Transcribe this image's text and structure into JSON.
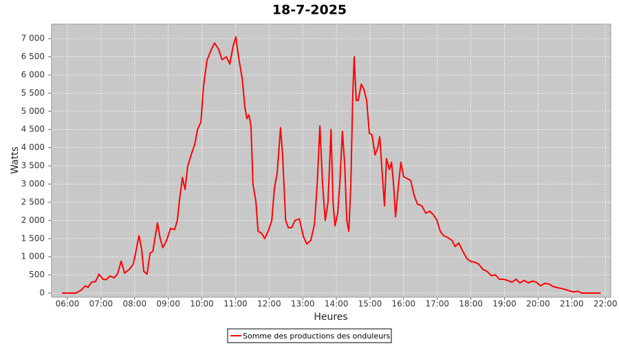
{
  "chart_data": {
    "type": "line",
    "title": "18-7-2025",
    "x_label": "Heures",
    "y_label": "Watts",
    "x": [
      5.84,
      6.25,
      6.41,
      6.53,
      6.61,
      6.72,
      6.84,
      6.94,
      7.06,
      7.15,
      7.27,
      7.39,
      7.49,
      7.6,
      7.7,
      7.84,
      7.96,
      8.05,
      8.13,
      8.21,
      8.27,
      8.37,
      8.46,
      8.54,
      8.68,
      8.76,
      8.84,
      8.95,
      9.07,
      9.19,
      9.27,
      9.34,
      9.42,
      9.5,
      9.58,
      9.68,
      9.79,
      9.87,
      9.97,
      10.05,
      10.15,
      10.28,
      10.38,
      10.5,
      10.6,
      10.73,
      10.83,
      10.93,
      11.01,
      11.09,
      11.2,
      11.28,
      11.34,
      11.4,
      11.46,
      11.52,
      11.61,
      11.67,
      11.77,
      11.87,
      11.97,
      12.08,
      12.16,
      12.24,
      12.34,
      12.4,
      12.49,
      12.57,
      12.67,
      12.77,
      12.9,
      13.02,
      13.12,
      13.24,
      13.35,
      13.43,
      13.51,
      13.59,
      13.67,
      13.75,
      13.84,
      13.9,
      13.96,
      14.04,
      14.1,
      14.18,
      14.25,
      14.31,
      14.37,
      14.43,
      14.49,
      14.53,
      14.59,
      14.65,
      14.74,
      14.82,
      14.9,
      14.98,
      15.06,
      15.15,
      15.23,
      15.29,
      15.37,
      15.43,
      15.49,
      15.58,
      15.64,
      15.7,
      15.76,
      15.84,
      15.92,
      16.0,
      16.11,
      16.21,
      16.31,
      16.41,
      16.54,
      16.66,
      16.78,
      16.89,
      16.99,
      17.09,
      17.19,
      17.31,
      17.44,
      17.53,
      17.64,
      17.76,
      17.88,
      18.0,
      18.12,
      18.23,
      18.36,
      18.48,
      18.61,
      18.73,
      18.85,
      18.97,
      19.09,
      19.22,
      19.34,
      19.46,
      19.58,
      19.71,
      19.83,
      19.95,
      20.07,
      20.2,
      20.32,
      20.45,
      20.57,
      20.69,
      20.81,
      20.94,
      21.06,
      21.18,
      21.3,
      21.59,
      21.86
    ],
    "series": [
      {
        "name": "Somme des productions des onduleurs",
        "color": "#ff0000",
        "values": [
          0,
          0,
          80,
          200,
          160,
          300,
          320,
          520,
          380,
          370,
          470,
          420,
          520,
          880,
          550,
          650,
          800,
          1200,
          1580,
          1200,
          600,
          520,
          1100,
          1150,
          1930,
          1500,
          1250,
          1450,
          1780,
          1750,
          2000,
          2600,
          3180,
          2850,
          3500,
          3800,
          4100,
          4500,
          4700,
          5700,
          6400,
          6700,
          6880,
          6700,
          6420,
          6500,
          6300,
          6800,
          7050,
          6500,
          5900,
          5100,
          4800,
          4900,
          4600,
          3000,
          2500,
          1700,
          1650,
          1500,
          1700,
          2000,
          2900,
          3300,
          4550,
          3800,
          2000,
          1800,
          1800,
          2000,
          2040,
          1550,
          1350,
          1450,
          1900,
          3000,
          4600,
          3000,
          2000,
          2500,
          4500,
          2500,
          1850,
          2200,
          3000,
          4450,
          3500,
          2000,
          1700,
          3000,
          5500,
          6500,
          5300,
          5300,
          5750,
          5600,
          5300,
          4400,
          4350,
          3800,
          4000,
          4300,
          3200,
          2400,
          3700,
          3400,
          3600,
          3000,
          2100,
          2900,
          3600,
          3200,
          3150,
          3100,
          2700,
          2450,
          2400,
          2200,
          2250,
          2150,
          2000,
          1700,
          1580,
          1530,
          1450,
          1280,
          1380,
          1150,
          950,
          870,
          850,
          800,
          650,
          600,
          480,
          500,
          380,
          380,
          350,
          300,
          380,
          280,
          350,
          280,
          330,
          300,
          200,
          270,
          250,
          180,
          150,
          130,
          100,
          60,
          30,
          50,
          0,
          0,
          0
        ]
      }
    ],
    "xlim": [
      5.53,
      22.16
    ],
    "xticks": [
      {
        "value": 6,
        "label": "06:00"
      },
      {
        "value": 7,
        "label": "07:00"
      },
      {
        "value": 8,
        "label": "08:00"
      },
      {
        "value": 9,
        "label": "09:00"
      },
      {
        "value": 10,
        "label": "10:00"
      },
      {
        "value": 11,
        "label": "11:00"
      },
      {
        "value": 12,
        "label": "12:00"
      },
      {
        "value": 13,
        "label": "13:00"
      },
      {
        "value": 14,
        "label": "14:00"
      },
      {
        "value": 15,
        "label": "15:00"
      },
      {
        "value": 16,
        "label": "16:00"
      },
      {
        "value": 17,
        "label": "17:00"
      },
      {
        "value": 18,
        "label": "18:00"
      },
      {
        "value": 19,
        "label": "19:00"
      },
      {
        "value": 20,
        "label": "20:00"
      },
      {
        "value": 21,
        "label": "21:00"
      },
      {
        "value": 22,
        "label": "22:00"
      }
    ],
    "ylim": [
      -113,
      7400
    ],
    "yticks": [
      0,
      500,
      {
        "value": 1000,
        "label": "1 000"
      },
      {
        "value": 1500,
        "label": "1 500"
      },
      {
        "value": 2000,
        "label": "2 000"
      },
      {
        "value": 2500,
        "label": "2 500"
      },
      {
        "value": 3000,
        "label": "3 000"
      },
      {
        "value": 3500,
        "label": "3 500"
      },
      {
        "value": 4000,
        "label": "4 000"
      },
      {
        "value": 4500,
        "label": "4 500"
      },
      {
        "value": 5000,
        "label": "5 000"
      },
      {
        "value": 5500,
        "label": "5 500"
      },
      {
        "value": 6000,
        "label": "6 000"
      },
      {
        "value": 6500,
        "label": "6 500"
      },
      {
        "value": 7000,
        "label": "7 000"
      }
    ],
    "grid": true,
    "legend": "bottom"
  }
}
